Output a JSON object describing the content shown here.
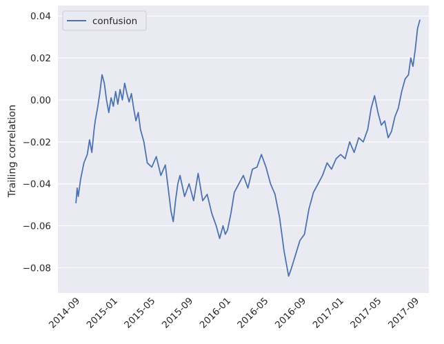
{
  "chart_data": {
    "type": "line",
    "title": "",
    "xlabel": "",
    "ylabel": "Trailing correlation",
    "ylim": [
      -0.092,
      0.045
    ],
    "yticks": [
      -0.08,
      -0.06,
      -0.04,
      -0.02,
      0.0,
      0.02,
      0.04
    ],
    "ytick_labels": [
      "−0.08",
      "−0.06",
      "−0.04",
      "−0.02",
      "0.00",
      "0.02",
      "0.04"
    ],
    "xlim": [
      2014.5,
      2017.78
    ],
    "xticks": [
      2014.667,
      2015.0,
      2015.333,
      2015.667,
      2016.0,
      2016.333,
      2016.667,
      2017.0,
      2017.333,
      2017.667
    ],
    "xtick_labels": [
      "2014-09",
      "2015-01",
      "2015-05",
      "2015-09",
      "2016-01",
      "2016-05",
      "2016-09",
      "2017-01",
      "2017-05",
      "2017-09"
    ],
    "grid": true,
    "legend": {
      "position": "top-left",
      "entries": [
        "confusion"
      ]
    },
    "colors": {
      "background": "#eaeaf2",
      "grid": "#ffffff",
      "series": "#4c72b0"
    },
    "series": [
      {
        "name": "confusion",
        "x": [
          2014.66,
          2014.67,
          2014.68,
          2014.7,
          2014.73,
          2014.76,
          2014.78,
          2014.8,
          2014.82,
          2014.83,
          2014.85,
          2014.87,
          2014.89,
          2014.91,
          2014.93,
          2014.95,
          2014.97,
          2014.99,
          2015.01,
          2015.03,
          2015.05,
          2015.07,
          2015.09,
          2015.11,
          2015.13,
          2015.15,
          2015.17,
          2015.19,
          2015.21,
          2015.23,
          2015.26,
          2015.29,
          2015.33,
          2015.37,
          2015.41,
          2015.45,
          2015.48,
          2015.5,
          2015.52,
          2015.54,
          2015.56,
          2015.58,
          2015.62,
          2015.66,
          2015.7,
          2015.74,
          2015.78,
          2015.82,
          2015.86,
          2015.9,
          2015.93,
          2015.96,
          2015.98,
          2016.0,
          2016.03,
          2016.06,
          2016.1,
          2016.14,
          2016.18,
          2016.22,
          2016.26,
          2016.3,
          2016.34,
          2016.38,
          2016.42,
          2016.46,
          2016.48,
          2016.5,
          2016.52,
          2016.54,
          2016.56,
          2016.6,
          2016.64,
          2016.68,
          2016.72,
          2016.76,
          2016.8,
          2016.84,
          2016.88,
          2016.92,
          2016.96,
          2017.0,
          2017.04,
          2017.08,
          2017.12,
          2017.16,
          2017.2,
          2017.24,
          2017.27,
          2017.3,
          2017.33,
          2017.36,
          2017.39,
          2017.42,
          2017.45,
          2017.48,
          2017.51,
          2017.54,
          2017.57,
          2017.6,
          2017.62,
          2017.64,
          2017.66,
          2017.68,
          2017.7
        ],
        "values": [
          -0.049,
          -0.042,
          -0.046,
          -0.038,
          -0.03,
          -0.026,
          -0.019,
          -0.025,
          -0.014,
          -0.01,
          -0.004,
          0.003,
          0.012,
          0.008,
          0.0,
          -0.006,
          0.001,
          -0.003,
          0.004,
          -0.002,
          0.005,
          0.0,
          0.008,
          0.003,
          -0.001,
          0.003,
          -0.004,
          -0.01,
          -0.006,
          -0.014,
          -0.02,
          -0.03,
          -0.032,
          -0.027,
          -0.036,
          -0.031,
          -0.044,
          -0.053,
          -0.058,
          -0.048,
          -0.04,
          -0.036,
          -0.046,
          -0.04,
          -0.048,
          -0.035,
          -0.048,
          -0.045,
          -0.054,
          -0.06,
          -0.066,
          -0.06,
          -0.064,
          -0.062,
          -0.054,
          -0.044,
          -0.04,
          -0.036,
          -0.042,
          -0.033,
          -0.032,
          -0.026,
          -0.032,
          -0.04,
          -0.045,
          -0.056,
          -0.064,
          -0.072,
          -0.078,
          -0.084,
          -0.081,
          -0.074,
          -0.067,
          -0.064,
          -0.052,
          -0.044,
          -0.04,
          -0.036,
          -0.03,
          -0.033,
          -0.028,
          -0.026,
          -0.028,
          -0.02,
          -0.025,
          -0.018,
          -0.02,
          -0.014,
          -0.004,
          0.002,
          -0.006,
          -0.012,
          -0.01,
          -0.018,
          -0.015,
          -0.008,
          -0.004,
          0.004,
          0.01,
          0.012,
          0.02,
          0.016,
          0.024,
          0.034,
          0.038
        ]
      }
    ]
  }
}
